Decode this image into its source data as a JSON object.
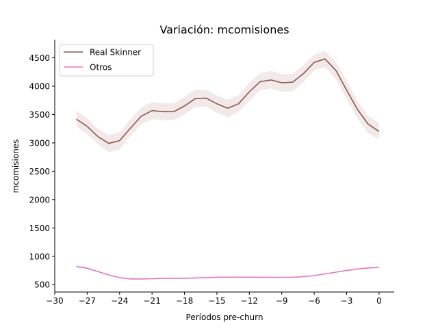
{
  "chart_data": {
    "type": "line",
    "title": "Variación: mcomisiones",
    "xlabel": "Períodos pre-churn",
    "ylabel": "mcomisiones",
    "xlim": [
      -30,
      1.4
    ],
    "ylim": [
      370,
      4820
    ],
    "x_ticks": [
      -30,
      -27,
      -24,
      -21,
      -18,
      -15,
      -12,
      -9,
      -6,
      -3,
      0
    ],
    "x_tick_labels": [
      "−30",
      "−27",
      "−24",
      "−21",
      "−18",
      "−15",
      "−12",
      "−9",
      "−6",
      "−3",
      "0"
    ],
    "y_ticks": [
      500,
      1000,
      1500,
      2000,
      2500,
      3000,
      3500,
      4000,
      4500
    ],
    "y_tick_labels": [
      "500",
      "1000",
      "1500",
      "2000",
      "2500",
      "3000",
      "3500",
      "4000",
      "4500"
    ],
    "grid": false,
    "legend_position": "top-left",
    "x": [
      -28,
      -27,
      -26,
      -25,
      -24,
      -23,
      -22,
      -21,
      -20,
      -19,
      -18,
      -17,
      -16,
      -15,
      -14,
      -13,
      -12,
      -11,
      -10,
      -9,
      -8,
      -7,
      -6,
      -5,
      -4,
      -3,
      -2,
      -1,
      0
    ],
    "series": [
      {
        "name": "Real Skinner",
        "color": "#8c564b",
        "values": [
          3420,
          3290,
          3110,
          2990,
          3040,
          3260,
          3470,
          3570,
          3550,
          3550,
          3650,
          3780,
          3790,
          3690,
          3610,
          3690,
          3900,
          4080,
          4110,
          4060,
          4070,
          4220,
          4420,
          4480,
          4280,
          3930,
          3590,
          3330,
          3200
        ],
        "band_lower": [
          3290,
          3160,
          2970,
          2840,
          2880,
          3120,
          3330,
          3420,
          3400,
          3400,
          3500,
          3630,
          3640,
          3530,
          3450,
          3540,
          3740,
          3930,
          3960,
          3900,
          3910,
          4070,
          4280,
          4330,
          4130,
          3770,
          3430,
          3170,
          3060
        ],
        "band_upper": [
          3570,
          3430,
          3250,
          3140,
          3190,
          3410,
          3620,
          3720,
          3700,
          3700,
          3810,
          3940,
          3940,
          3840,
          3760,
          3840,
          4060,
          4230,
          4270,
          4210,
          4220,
          4370,
          4560,
          4620,
          4430,
          4090,
          3740,
          3470,
          3350
        ]
      },
      {
        "name": "Otros",
        "color": "#e377c2",
        "values": [
          820,
          790,
          730,
          670,
          625,
          600,
          600,
          605,
          610,
          612,
          612,
          618,
          625,
          630,
          632,
          632,
          630,
          630,
          628,
          628,
          630,
          640,
          660,
          690,
          720,
          750,
          775,
          795,
          805
        ],
        "band_lower": [
          800,
          770,
          715,
          655,
          612,
          590,
          590,
          595,
          600,
          602,
          602,
          608,
          615,
          620,
          622,
          622,
          620,
          620,
          618,
          618,
          620,
          630,
          648,
          678,
          708,
          737,
          762,
          782,
          792
        ],
        "band_upper": [
          840,
          810,
          745,
          685,
          638,
          610,
          610,
          615,
          620,
          622,
          622,
          628,
          635,
          640,
          642,
          642,
          640,
          640,
          638,
          638,
          640,
          650,
          672,
          702,
          732,
          763,
          788,
          808,
          818
        ]
      }
    ]
  }
}
